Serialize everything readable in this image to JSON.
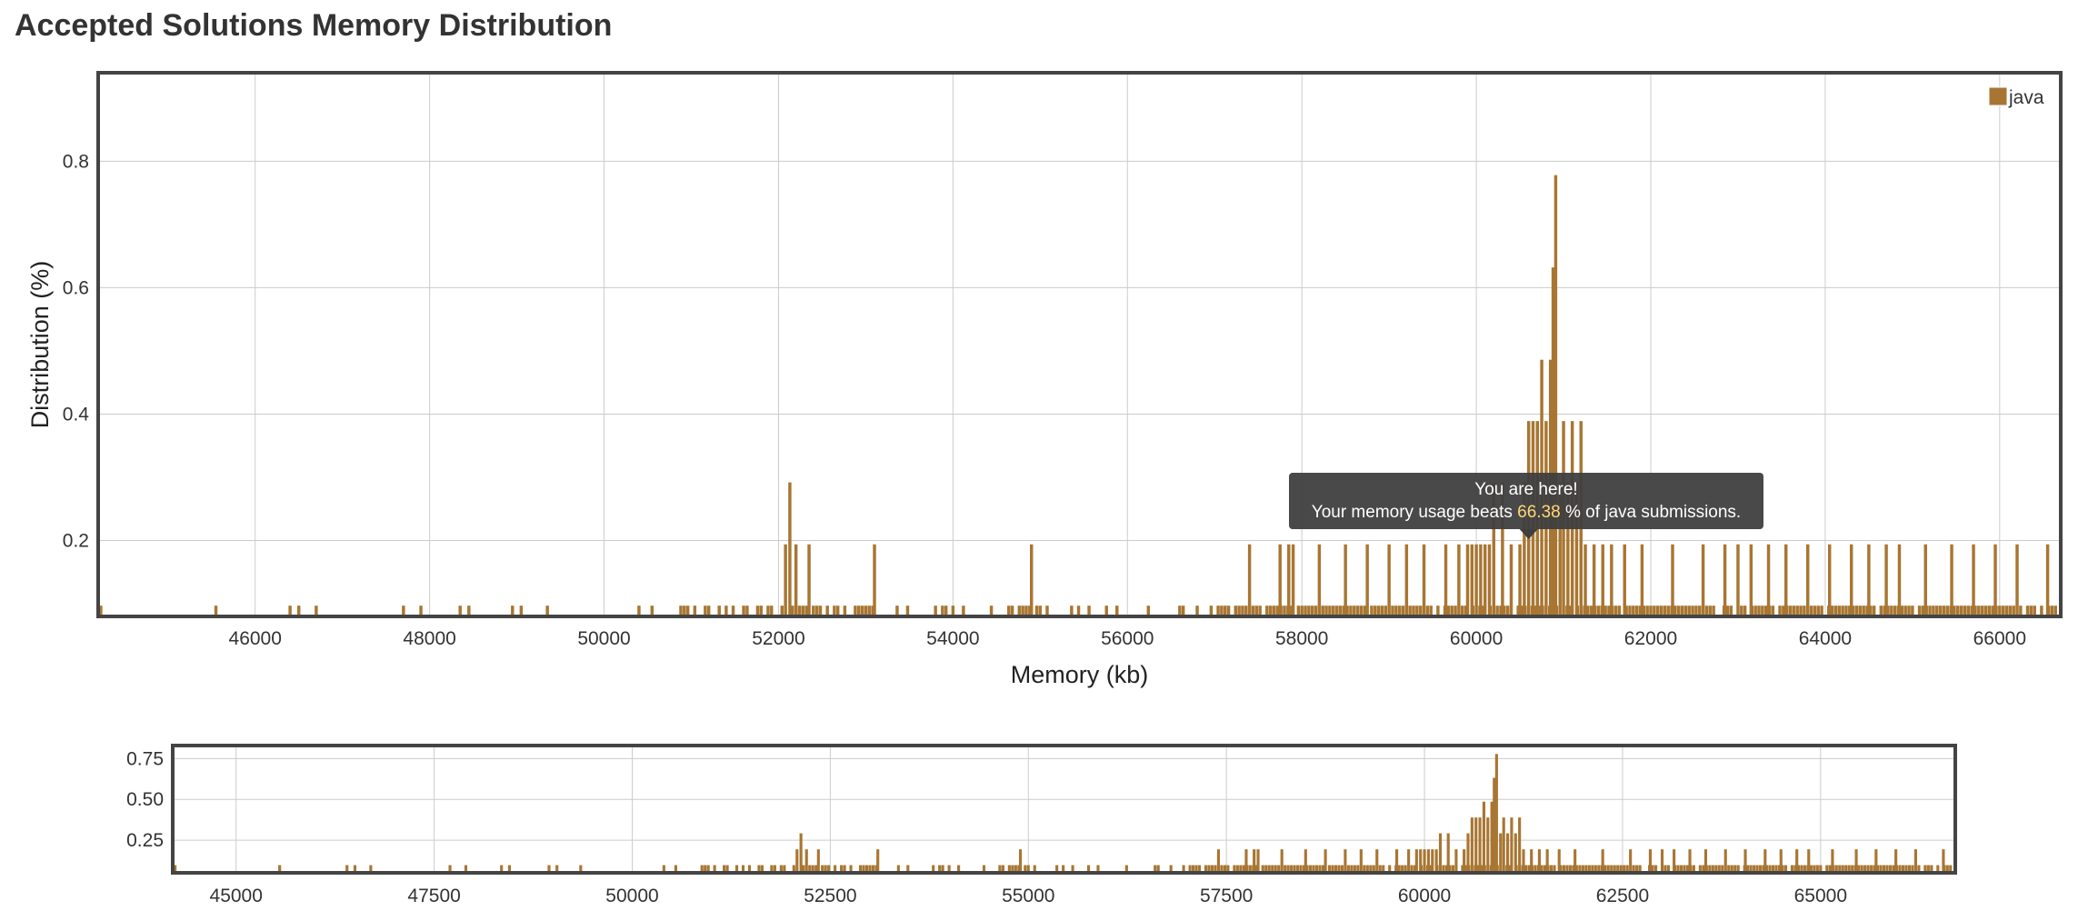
{
  "page_title": "Accepted Solutions Memory Distribution",
  "colors": {
    "bar": "#a87632",
    "tooltip_bg": "#3f3f3f",
    "tooltip_highlight": "#ffd878",
    "grid": "#cccccc",
    "frame": "#444444"
  },
  "chart_data": [
    {
      "type": "bar",
      "title": "",
      "xlabel": "Memory (kb)",
      "ylabel": "Distribution (%)",
      "xlim": [
        44200,
        66700
      ],
      "ylim": [
        0.08,
        0.94
      ],
      "grid": true,
      "legend": {
        "placement": "top-right",
        "entries": [
          "java"
        ]
      },
      "x_ticks": [
        "46000",
        "48000",
        "50000",
        "52000",
        "54000",
        "56000",
        "58000",
        "60000",
        "62000",
        "64000",
        "66000"
      ],
      "y_ticks": [
        "0.2",
        "0.4",
        "0.6",
        "0.8"
      ],
      "bin_width_kb": 40,
      "baseline_value": 0.097,
      "baseline_bins_note": "remaining bins between 50500 and 66700 sit at the baseline value",
      "series": [
        {
          "name": "java",
          "points": [
            [
              44230,
              0.097
            ],
            [
              45550,
              0.097
            ],
            [
              46400,
              0.097
            ],
            [
              46500,
              0.097
            ],
            [
              46700,
              0.097
            ],
            [
              47700,
              0.097
            ],
            [
              47900,
              0.097
            ],
            [
              48350,
              0.097
            ],
            [
              48450,
              0.097
            ],
            [
              48950,
              0.097
            ],
            [
              49050,
              0.097
            ],
            [
              49350,
              0.097
            ],
            [
              50400,
              0.097
            ],
            [
              50550,
              0.097
            ],
            [
              52080,
              0.194
            ],
            [
              52130,
              0.292
            ],
            [
              52200,
              0.194
            ],
            [
              52350,
              0.194
            ],
            [
              53100,
              0.194
            ],
            [
              54900,
              0.194
            ],
            [
              57400,
              0.194
            ],
            [
              57750,
              0.194
            ],
            [
              57850,
              0.194
            ],
            [
              57900,
              0.194
            ],
            [
              58200,
              0.194
            ],
            [
              58500,
              0.194
            ],
            [
              58750,
              0.194
            ],
            [
              59000,
              0.194
            ],
            [
              59200,
              0.194
            ],
            [
              59400,
              0.194
            ],
            [
              59650,
              0.194
            ],
            [
              59800,
              0.194
            ],
            [
              59900,
              0.194
            ],
            [
              59950,
              0.194
            ],
            [
              60000,
              0.194
            ],
            [
              60050,
              0.194
            ],
            [
              60100,
              0.194
            ],
            [
              60150,
              0.194
            ],
            [
              60200,
              0.292
            ],
            [
              60300,
              0.292
            ],
            [
              60400,
              0.194
            ],
            [
              60500,
              0.194
            ],
            [
              60550,
              0.292
            ],
            [
              60600,
              0.389
            ],
            [
              60650,
              0.389
            ],
            [
              60700,
              0.389
            ],
            [
              60750,
              0.486
            ],
            [
              60800,
              0.389
            ],
            [
              60850,
              0.486
            ],
            [
              60880,
              0.632
            ],
            [
              60910,
              0.778
            ],
            [
              60960,
              0.292
            ],
            [
              61000,
              0.389
            ],
            [
              61050,
              0.292
            ],
            [
              61100,
              0.389
            ],
            [
              61150,
              0.292
            ],
            [
              61200,
              0.389
            ],
            [
              61250,
              0.194
            ],
            [
              61350,
              0.194
            ],
            [
              61450,
              0.194
            ],
            [
              61550,
              0.194
            ],
            [
              61700,
              0.194
            ],
            [
              61900,
              0.194
            ],
            [
              62250,
              0.194
            ],
            [
              62600,
              0.194
            ],
            [
              62850,
              0.194
            ],
            [
              63000,
              0.194
            ],
            [
              63150,
              0.194
            ],
            [
              63350,
              0.194
            ],
            [
              63550,
              0.194
            ],
            [
              63800,
              0.194
            ],
            [
              64050,
              0.194
            ],
            [
              64300,
              0.194
            ],
            [
              64500,
              0.194
            ],
            [
              64700,
              0.194
            ],
            [
              64850,
              0.194
            ],
            [
              65150,
              0.194
            ],
            [
              65450,
              0.194
            ],
            [
              65700,
              0.194
            ],
            [
              65950,
              0.194
            ],
            [
              66200,
              0.194
            ],
            [
              66550,
              0.194
            ]
          ]
        }
      ],
      "annotation": {
        "line1": "You are here!",
        "line2_before": "Your memory usage beats ",
        "line2_value": "66.38",
        "line2_after": " % of java submissions.",
        "x": 60600
      }
    },
    {
      "type": "bar",
      "title": "",
      "xlabel": "",
      "ylabel": "",
      "role": "overview",
      "xlim": [
        44200,
        66700
      ],
      "ylim": [
        0.05,
        0.83
      ],
      "x_ticks": [
        "45000",
        "47500",
        "50000",
        "52500",
        "55000",
        "57500",
        "60000",
        "62500",
        "65000"
      ],
      "y_ticks": [
        "0.25",
        "0.50",
        "0.75"
      ],
      "series_ref": "java"
    }
  ]
}
